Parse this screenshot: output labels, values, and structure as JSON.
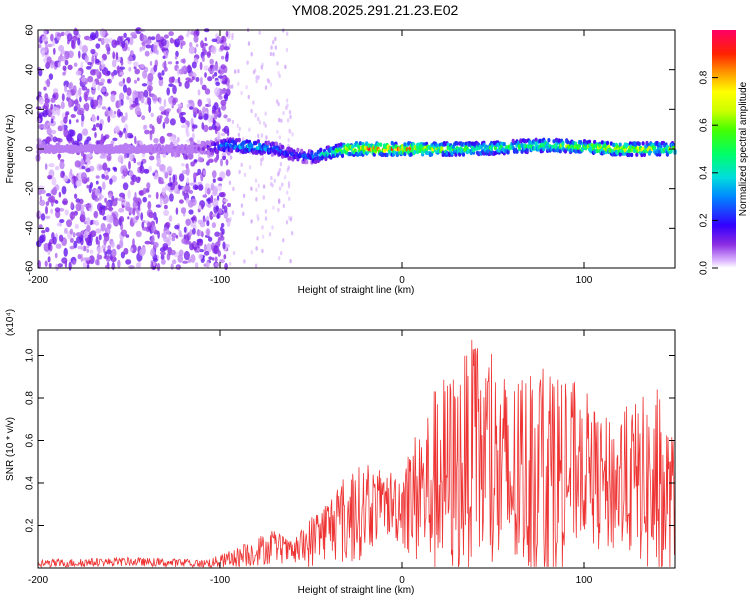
{
  "title": "YM08.2025.291.21.23.E02",
  "chart_data": [
    {
      "type": "heatmap",
      "title": "YM08.2025.291.21.23.E02",
      "xlabel": "Height of straight line (km)",
      "ylabel": "Frequency (Hz)",
      "xlim": [
        -200,
        150
      ],
      "ylim": [
        -60,
        60
      ],
      "xticks": [
        -200,
        -100,
        0,
        100
      ],
      "yticks": [
        -60,
        -40,
        -20,
        0,
        20,
        40,
        60
      ],
      "colorbar": {
        "label": "Normalized spectral amplitude",
        "range": [
          0,
          1
        ],
        "ticks": [
          "0.0",
          "0.2",
          "0.4",
          "0.6",
          "0.8"
        ]
      },
      "ridge": {
        "x": [
          -200,
          -150,
          -110,
          -95,
          -80,
          -70,
          -60,
          -50,
          -40,
          -30,
          -20,
          0,
          20,
          40,
          60,
          80,
          100,
          120,
          150
        ],
        "frequency": [
          0,
          0,
          0,
          2,
          1,
          0,
          -3,
          -4,
          -2,
          0,
          0,
          0,
          0,
          0,
          1,
          2,
          1,
          0,
          0
        ],
        "amplitude": [
          0.05,
          0.05,
          0.1,
          0.4,
          0.45,
          0.3,
          0.25,
          0.3,
          0.5,
          0.75,
          0.9,
          0.9,
          0.7,
          0.6,
          0.55,
          0.6,
          0.7,
          0.8,
          0.6
        ]
      }
    },
    {
      "type": "line",
      "xlabel": "Height of straight line (km)",
      "ylabel": "SNR (10 * v/v)",
      "yscale_label": "(x10⁴)",
      "xlim": [
        -200,
        150
      ],
      "ylim": [
        0,
        1.12
      ],
      "xticks": [
        -200,
        -100,
        0,
        100
      ],
      "yticks": [
        0.2,
        0.4,
        0.6,
        0.8,
        1.0
      ],
      "ytick_labels": [
        "0.2",
        "0.4",
        "0.6",
        "0.8",
        "1.0"
      ],
      "series": [
        {
          "name": "SNR",
          "color": "#ee3333",
          "x": [
            -200,
            -150,
            -110,
            -100,
            -90,
            -80,
            -70,
            -60,
            -50,
            -40,
            -30,
            -20,
            -10,
            0,
            10,
            20,
            30,
            40,
            50,
            60,
            70,
            80,
            90,
            100,
            110,
            120,
            130,
            140,
            150
          ],
          "mean": [
            0.02,
            0.03,
            0.02,
            0.03,
            0.05,
            0.08,
            0.1,
            0.07,
            0.12,
            0.2,
            0.22,
            0.28,
            0.3,
            0.3,
            0.34,
            0.42,
            0.45,
            0.55,
            0.45,
            0.4,
            0.45,
            0.42,
            0.45,
            0.5,
            0.38,
            0.4,
            0.42,
            0.35,
            0.3
          ],
          "peak": [
            0.04,
            0.05,
            0.04,
            0.06,
            0.1,
            0.15,
            0.18,
            0.12,
            0.25,
            0.35,
            0.45,
            0.5,
            0.45,
            0.5,
            0.7,
            0.9,
            0.95,
            1.1,
            1.0,
            0.9,
            0.95,
            1.05,
            0.9,
            0.85,
            0.7,
            0.75,
            0.8,
            0.85,
            0.6
          ]
        }
      ]
    }
  ]
}
